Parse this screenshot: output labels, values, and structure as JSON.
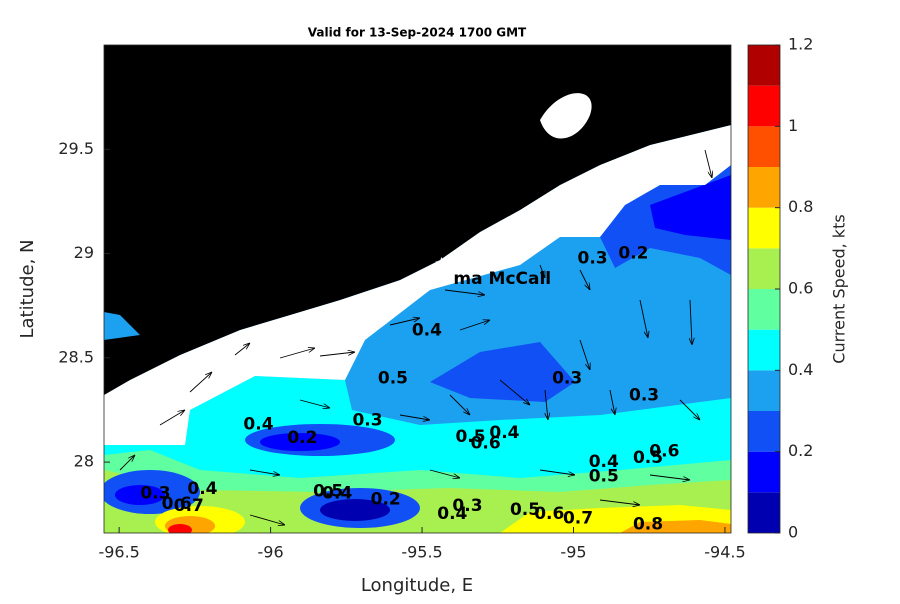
{
  "chart_data": {
    "type": "map",
    "title": "Valid for 13-Sep-2024 1700 GMT",
    "x_label": "Longitude, E",
    "y_label": "Latitude, N",
    "xlim": [
      -96.55,
      -94.48
    ],
    "ylim": [
      27.66,
      30.0
    ],
    "xticks": [
      -96.5,
      -96,
      -95.5,
      -95,
      -94.5
    ],
    "yticks": [
      28,
      28.5,
      29,
      29.5
    ],
    "colorbar": {
      "label": "Current Speed, kts",
      "lim": [
        0,
        1.2
      ],
      "ticks": [
        0,
        0.2,
        0.4,
        0.6,
        0.8,
        1,
        1.2
      ],
      "colors": [
        "#0000b0",
        "#0000ff",
        "#1050f5",
        "#1ca0f0",
        "#00ffff",
        "#60ffa0",
        "#a8f050",
        "#ffff00",
        "#ffa500",
        "#ff5000",
        "#ff0000",
        "#b00000"
      ]
    },
    "station": {
      "label": "ma McCall",
      "lon": -95.436,
      "lat": 28.95
    },
    "contour_labels": [
      {
        "value": 0.3,
        "lon": -94.937,
        "lat": 28.976
      },
      {
        "value": 0.2,
        "lon": -94.802,
        "lat": 29.0
      },
      {
        "value": 0.4,
        "lon": -95.484,
        "lat": 28.632
      },
      {
        "value": 0.5,
        "lon": -95.596,
        "lat": 28.4
      },
      {
        "value": 0.3,
        "lon": -95.021,
        "lat": 28.4
      },
      {
        "value": 0.3,
        "lon": -94.767,
        "lat": 28.32
      },
      {
        "value": 0.4,
        "lon": -96.04,
        "lat": 28.18
      },
      {
        "value": 0.3,
        "lon": -95.68,
        "lat": 28.2
      },
      {
        "value": 0.2,
        "lon": -95.895,
        "lat": 28.115
      },
      {
        "value": 0.5,
        "lon": -95.34,
        "lat": 28.12
      },
      {
        "value": 0.6,
        "lon": -95.29,
        "lat": 28.09
      },
      {
        "value": 0.4,
        "lon": -95.228,
        "lat": 28.14
      },
      {
        "value": 0.4,
        "lon": -94.9,
        "lat": 28.0
      },
      {
        "value": 0.5,
        "lon": -94.9,
        "lat": 27.93
      },
      {
        "value": 0.5,
        "lon": -94.754,
        "lat": 28.02
      },
      {
        "value": 0.6,
        "lon": -94.7,
        "lat": 28.05
      },
      {
        "value": 0.3,
        "lon": -96.38,
        "lat": 27.85
      },
      {
        "value": 0.4,
        "lon": -96.225,
        "lat": 27.87
      },
      {
        "value": 0.6,
        "lon": -96.31,
        "lat": 27.8
      },
      {
        "value": 0.7,
        "lon": -96.27,
        "lat": 27.79
      },
      {
        "value": 0.5,
        "lon": -95.81,
        "lat": 27.86
      },
      {
        "value": 0.4,
        "lon": -95.78,
        "lat": 27.85
      },
      {
        "value": 0.2,
        "lon": -95.62,
        "lat": 27.82
      },
      {
        "value": 0.4,
        "lon": -95.4,
        "lat": 27.75
      },
      {
        "value": 0.3,
        "lon": -95.35,
        "lat": 27.79
      },
      {
        "value": 0.5,
        "lon": -95.16,
        "lat": 27.77
      },
      {
        "value": 0.6,
        "lon": -95.08,
        "lat": 27.75
      },
      {
        "value": 0.7,
        "lon": -94.985,
        "lat": 27.73
      },
      {
        "value": 0.8,
        "lon": -94.754,
        "lat": 27.7
      }
    ]
  }
}
